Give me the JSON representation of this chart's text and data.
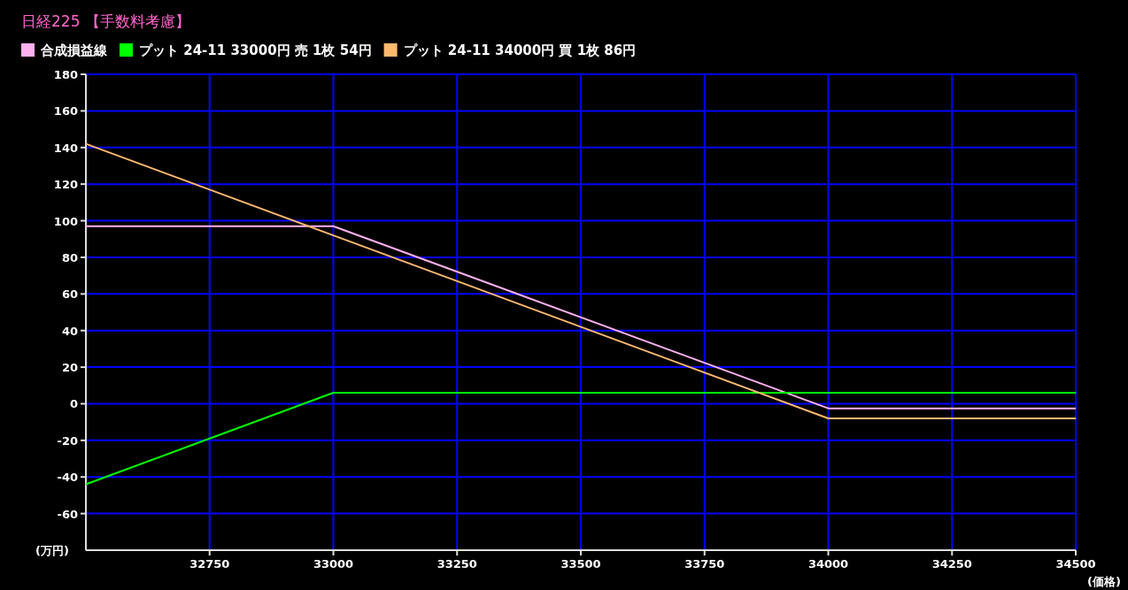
{
  "chart_data": {
    "type": "line",
    "title": "日経225 【手数料考慮】",
    "xlabel": "(価格)",
    "ylabel": "(万円)",
    "x": [
      32500,
      33000,
      34000,
      34500
    ],
    "series": [
      {
        "name": "合成損益線",
        "color": "#ffb0f0",
        "values": [
          97,
          97,
          -2.5,
          -2.5
        ]
      },
      {
        "name": "プット 24-11 33000円 売 1枚 54円",
        "color": "#00ff00",
        "values": [
          -44,
          6,
          6,
          6
        ]
      },
      {
        "name": "プット 24-11 34000円 買 1枚 86円",
        "color": "#ffb870",
        "values": [
          142,
          92,
          -8,
          -8
        ]
      }
    ],
    "xlim": [
      32500,
      34500
    ],
    "xticks": [
      32750,
      33000,
      33250,
      33500,
      33750,
      34000,
      34250,
      34500
    ],
    "ylim": [
      -80,
      180
    ],
    "yticks": [
      -60,
      -40,
      -20,
      0,
      20,
      40,
      60,
      80,
      100,
      120,
      140,
      160,
      180
    ],
    "grid": true,
    "legend": "top",
    "marker": "none",
    "line_style": "solid"
  }
}
